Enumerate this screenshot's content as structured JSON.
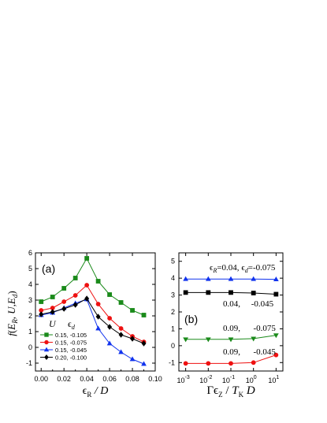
{
  "chart_data": [
    {
      "panel": "(a)",
      "type": "line",
      "ylabel": "f(E_R, U, E_d)",
      "ylabel_parts": {
        "f": "f",
        "open": "(",
        "E1": "E",
        "R": "R",
        "comma1": ", ",
        "U": "U",
        "comma2": ",",
        "E2": "E",
        "d": "d",
        "close": ")"
      },
      "xlabel_parts": {
        "eps": "ϵ",
        "sub": "R",
        "rest": " / D"
      },
      "xlim": [
        -0.005,
        0.1
      ],
      "ylim": [
        -1.5,
        6
      ],
      "xticks": [
        "0.00",
        "0.02",
        "0.04",
        "0.06",
        "0.08",
        "0.10"
      ],
      "xtick_values": [
        0.0,
        0.02,
        0.04,
        0.06,
        0.08,
        0.1
      ],
      "yticks": [
        "-1",
        "0",
        "1",
        "2",
        "3",
        "4",
        "5",
        "6"
      ],
      "ytick_values": [
        -1,
        0,
        1,
        2,
        3,
        4,
        5,
        6
      ],
      "legend_header": {
        "U": "U",
        "eps": "ϵ",
        "sub": "d"
      },
      "legend_position": "bottom-left",
      "x": [
        0.0,
        0.01,
        0.02,
        0.03,
        0.04,
        0.05,
        0.06,
        0.07,
        0.08,
        0.09
      ],
      "series": [
        {
          "name": "0.15, -0.105",
          "color": "#1a8a1a",
          "marker": "square",
          "values": [
            2.9,
            3.2,
            3.75,
            4.4,
            5.65,
            4.2,
            3.35,
            2.85,
            2.35,
            2.05
          ]
        },
        {
          "name": "0.15, -0.075",
          "color": "#ee1111",
          "marker": "circle",
          "values": [
            2.35,
            2.5,
            2.9,
            3.3,
            3.95,
            2.75,
            1.85,
            1.2,
            0.7,
            0.35
          ]
        },
        {
          "name": "0.15, -0.045",
          "color": "#1133ee",
          "marker": "triangle-up",
          "values": [
            2.05,
            2.2,
            2.5,
            2.8,
            3.05,
            1.2,
            0.25,
            -0.3,
            -0.75,
            -1.05
          ]
        },
        {
          "name": "0.20, -0.100",
          "color": "#000000",
          "marker": "diamond",
          "values": [
            2.1,
            2.25,
            2.45,
            2.7,
            3.1,
            1.95,
            1.3,
            0.8,
            0.55,
            0.25
          ]
        }
      ]
    },
    {
      "panel": "(b)",
      "type": "line",
      "xscale": "log",
      "xlabel_parts": {
        "gamma": "Γ",
        "eps": "ϵ",
        "sub_z": "Z",
        "slash": " / ",
        "T": "T",
        "sub_k": "K",
        "D": " D"
      },
      "xlim": [
        0.0005,
        20
      ],
      "ylim": [
        -1.5,
        5.5
      ],
      "xticks": [
        {
          "base": "10",
          "exp": "-3"
        },
        {
          "base": "10",
          "exp": "-2"
        },
        {
          "base": "10",
          "exp": "-1"
        },
        {
          "base": "10",
          "exp": "0"
        },
        {
          "base": "10",
          "exp": "1"
        }
      ],
      "xtick_values": [
        0.001,
        0.01,
        0.1,
        1,
        10
      ],
      "yticks": [
        "-1",
        "0",
        "1",
        "2",
        "3",
        "4",
        "5"
      ],
      "ytick_values": [
        -1,
        0,
        1,
        2,
        3,
        4,
        5
      ],
      "x": [
        0.001,
        0.01,
        0.1,
        1,
        10
      ],
      "annotation_top": {
        "eps1": "ϵ",
        "sub1": "R",
        "val1": "=0.04, ",
        "eps2": "ϵ",
        "sub2": "d",
        "val2": "=-0.075"
      },
      "series": [
        {
          "label": "0.04,     -0.045",
          "color": "#000000",
          "marker": "square",
          "values": [
            3.15,
            3.15,
            3.15,
            3.12,
            3.05
          ]
        },
        {
          "label": "0.04,  -0.075",
          "color": "#1133ee",
          "marker": "triangle-up",
          "values": [
            3.95,
            3.95,
            3.95,
            3.95,
            3.93
          ]
        },
        {
          "label": "0.09,      -0.075",
          "color": "#1a8a1a",
          "marker": "triangle-down",
          "values": [
            0.38,
            0.38,
            0.38,
            0.42,
            0.62
          ]
        },
        {
          "label": "0.09,      -0.045",
          "color": "#ee1111",
          "marker": "circle",
          "values": [
            -1.05,
            -1.05,
            -1.05,
            -1.0,
            -0.55
          ]
        }
      ]
    }
  ]
}
